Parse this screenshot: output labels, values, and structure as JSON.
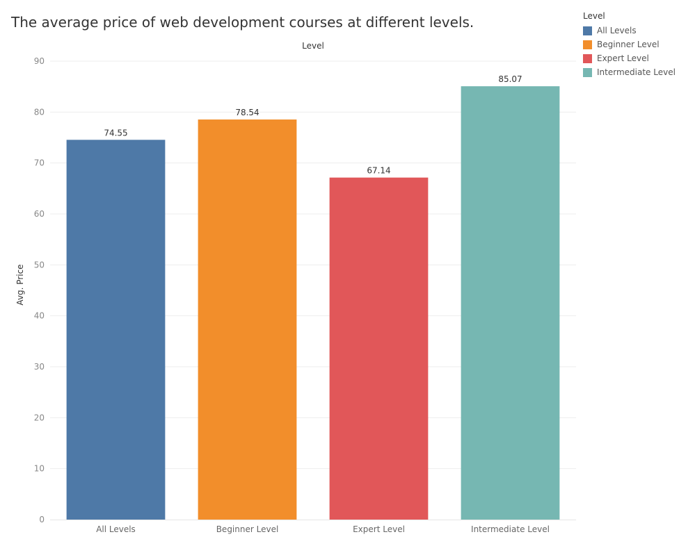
{
  "chart_data": {
    "type": "bar",
    "title": "The average price of web development courses at different levels.",
    "column_header": "Level",
    "xlabel": "",
    "ylabel": "Avg. Price",
    "categories": [
      "All Levels",
      "Beginner Level",
      "Expert Level",
      "Intermediate Level"
    ],
    "values": [
      74.55,
      78.54,
      67.14,
      85.07
    ],
    "data_labels": [
      "74.55",
      "78.54",
      "67.14",
      "85.07"
    ],
    "colors": [
      "#4e79a7",
      "#f28e2b",
      "#e15759",
      "#76b7b2"
    ],
    "ylim": [
      0,
      90
    ],
    "yticks": [
      "0",
      "10",
      "20",
      "30",
      "40",
      "50",
      "60",
      "70",
      "80",
      "90"
    ],
    "grid": true,
    "legend": {
      "title": "Level",
      "position": "top-right",
      "items": [
        "All Levels",
        "Beginner Level",
        "Expert Level",
        "Intermediate Level"
      ]
    }
  }
}
